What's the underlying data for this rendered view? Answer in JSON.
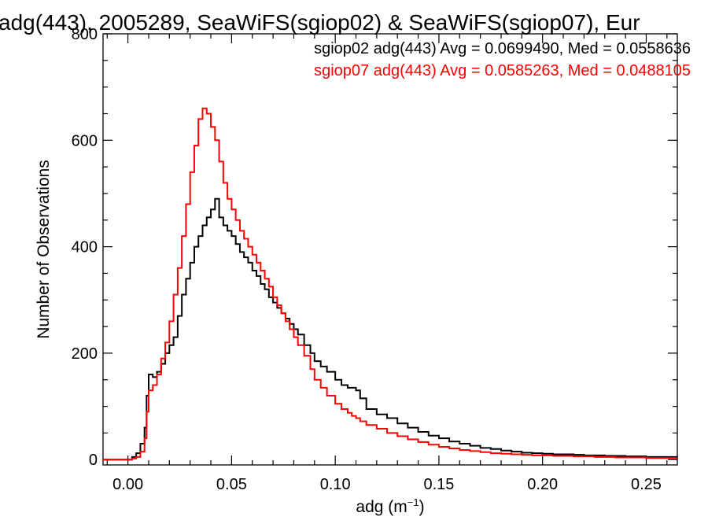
{
  "chart_data": {
    "type": "line",
    "step": true,
    "title": "adg(443), 2005289, SeaWiFS(sgiop02) & SeaWiFS(sgiop07), Eur",
    "xlabel_main": "adg (m",
    "xlabel_sup": "−1",
    "xlabel_close": ")",
    "ylabel": "Number of Observations",
    "xlim": [
      -0.012,
      0.265
    ],
    "ylim": [
      -10,
      800
    ],
    "xticks": [
      0.0,
      0.05,
      0.1,
      0.15,
      0.2,
      0.25
    ],
    "xtick_labels": [
      "0.00",
      "0.05",
      "0.10",
      "0.15",
      "0.20",
      "0.25"
    ],
    "yticks": [
      0,
      200,
      400,
      600,
      800
    ],
    "ytick_labels": [
      "0",
      "200",
      "400",
      "600",
      "800"
    ],
    "grid": false,
    "legend_position": "top-right",
    "annotations": [
      {
        "text": "sgiop02 adg(443) Avg = 0.0699490, Med = 0.0558636",
        "color": "#000000"
      },
      {
        "text": "sgiop07 adg(443) Avg = 0.0585263, Med = 0.0488105",
        "color": "#ff0000"
      }
    ],
    "series": [
      {
        "name": "sgiop02",
        "color": "#000000",
        "points": [
          [
            -0.012,
            0
          ],
          [
            -0.005,
            0
          ],
          [
            0.0,
            0
          ],
          [
            0.002,
            5
          ],
          [
            0.004,
            12
          ],
          [
            0.006,
            30
          ],
          [
            0.008,
            60
          ],
          [
            0.009,
            120
          ],
          [
            0.01,
            160
          ],
          [
            0.012,
            155
          ],
          [
            0.014,
            165
          ],
          [
            0.016,
            180
          ],
          [
            0.018,
            200
          ],
          [
            0.02,
            215
          ],
          [
            0.022,
            230
          ],
          [
            0.024,
            270
          ],
          [
            0.026,
            310
          ],
          [
            0.028,
            340
          ],
          [
            0.03,
            370
          ],
          [
            0.032,
            400
          ],
          [
            0.034,
            420
          ],
          [
            0.036,
            440
          ],
          [
            0.038,
            455
          ],
          [
            0.04,
            470
          ],
          [
            0.042,
            490
          ],
          [
            0.044,
            455
          ],
          [
            0.046,
            440
          ],
          [
            0.048,
            430
          ],
          [
            0.05,
            420
          ],
          [
            0.052,
            405
          ],
          [
            0.054,
            390
          ],
          [
            0.056,
            380
          ],
          [
            0.058,
            370
          ],
          [
            0.06,
            355
          ],
          [
            0.062,
            345
          ],
          [
            0.064,
            330
          ],
          [
            0.066,
            320
          ],
          [
            0.068,
            305
          ],
          [
            0.07,
            295
          ],
          [
            0.072,
            285
          ],
          [
            0.074,
            275
          ],
          [
            0.076,
            265
          ],
          [
            0.078,
            255
          ],
          [
            0.08,
            245
          ],
          [
            0.082,
            235
          ],
          [
            0.085,
            215
          ],
          [
            0.088,
            200
          ],
          [
            0.09,
            185
          ],
          [
            0.093,
            175
          ],
          [
            0.096,
            165
          ],
          [
            0.1,
            150
          ],
          [
            0.103,
            140
          ],
          [
            0.106,
            135
          ],
          [
            0.108,
            135
          ],
          [
            0.11,
            130
          ],
          [
            0.112,
            115
          ],
          [
            0.115,
            95
          ],
          [
            0.12,
            85
          ],
          [
            0.125,
            78
          ],
          [
            0.13,
            68
          ],
          [
            0.135,
            60
          ],
          [
            0.14,
            52
          ],
          [
            0.145,
            45
          ],
          [
            0.15,
            40
          ],
          [
            0.155,
            34
          ],
          [
            0.16,
            30
          ],
          [
            0.165,
            26
          ],
          [
            0.17,
            22
          ],
          [
            0.175,
            20
          ],
          [
            0.18,
            17
          ],
          [
            0.185,
            15
          ],
          [
            0.19,
            13
          ],
          [
            0.195,
            12
          ],
          [
            0.2,
            11
          ],
          [
            0.205,
            10
          ],
          [
            0.21,
            10
          ],
          [
            0.215,
            9
          ],
          [
            0.22,
            8
          ],
          [
            0.225,
            8
          ],
          [
            0.23,
            7
          ],
          [
            0.235,
            7
          ],
          [
            0.24,
            6
          ],
          [
            0.245,
            6
          ],
          [
            0.25,
            5
          ],
          [
            0.255,
            5
          ],
          [
            0.26,
            5
          ],
          [
            0.265,
            4
          ]
        ]
      },
      {
        "name": "sgiop07",
        "color": "#ff0000",
        "points": [
          [
            -0.012,
            0
          ],
          [
            -0.005,
            0
          ],
          [
            0.0,
            0
          ],
          [
            0.002,
            2
          ],
          [
            0.004,
            5
          ],
          [
            0.006,
            15
          ],
          [
            0.008,
            40
          ],
          [
            0.009,
            90
          ],
          [
            0.01,
            130
          ],
          [
            0.012,
            140
          ],
          [
            0.014,
            160
          ],
          [
            0.016,
            190
          ],
          [
            0.018,
            220
          ],
          [
            0.02,
            260
          ],
          [
            0.022,
            310
          ],
          [
            0.024,
            360
          ],
          [
            0.026,
            420
          ],
          [
            0.028,
            480
          ],
          [
            0.03,
            540
          ],
          [
            0.032,
            590
          ],
          [
            0.034,
            640
          ],
          [
            0.036,
            660
          ],
          [
            0.038,
            650
          ],
          [
            0.04,
            625
          ],
          [
            0.042,
            600
          ],
          [
            0.044,
            560
          ],
          [
            0.046,
            520
          ],
          [
            0.048,
            490
          ],
          [
            0.05,
            470
          ],
          [
            0.052,
            450
          ],
          [
            0.054,
            430
          ],
          [
            0.056,
            415
          ],
          [
            0.058,
            400
          ],
          [
            0.06,
            385
          ],
          [
            0.062,
            370
          ],
          [
            0.064,
            355
          ],
          [
            0.066,
            340
          ],
          [
            0.068,
            325
          ],
          [
            0.07,
            305
          ],
          [
            0.072,
            290
          ],
          [
            0.074,
            275
          ],
          [
            0.076,
            260
          ],
          [
            0.078,
            245
          ],
          [
            0.08,
            230
          ],
          [
            0.082,
            215
          ],
          [
            0.085,
            195
          ],
          [
            0.088,
            170
          ],
          [
            0.09,
            150
          ],
          [
            0.093,
            135
          ],
          [
            0.096,
            120
          ],
          [
            0.1,
            105
          ],
          [
            0.103,
            95
          ],
          [
            0.106,
            88
          ],
          [
            0.108,
            82
          ],
          [
            0.11,
            78
          ],
          [
            0.112,
            72
          ],
          [
            0.115,
            65
          ],
          [
            0.12,
            58
          ],
          [
            0.125,
            50
          ],
          [
            0.13,
            44
          ],
          [
            0.135,
            38
          ],
          [
            0.14,
            33
          ],
          [
            0.145,
            28
          ],
          [
            0.15,
            24
          ],
          [
            0.155,
            21
          ],
          [
            0.16,
            18
          ],
          [
            0.165,
            16
          ],
          [
            0.17,
            14
          ],
          [
            0.175,
            12
          ],
          [
            0.18,
            11
          ],
          [
            0.185,
            10
          ],
          [
            0.19,
            9
          ],
          [
            0.195,
            8
          ],
          [
            0.2,
            8
          ],
          [
            0.205,
            7
          ],
          [
            0.21,
            7
          ],
          [
            0.215,
            6
          ],
          [
            0.22,
            6
          ],
          [
            0.225,
            5
          ],
          [
            0.23,
            5
          ],
          [
            0.235,
            4
          ],
          [
            0.24,
            4
          ],
          [
            0.245,
            4
          ],
          [
            0.25,
            3
          ],
          [
            0.255,
            3
          ],
          [
            0.26,
            3
          ],
          [
            0.265,
            3
          ]
        ]
      }
    ]
  }
}
